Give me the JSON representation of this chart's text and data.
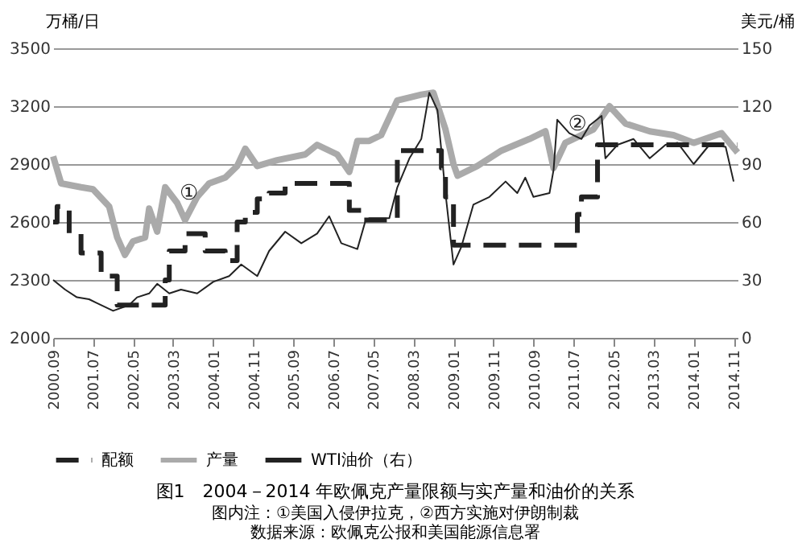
{
  "chart_data": {
    "type": "line",
    "title": "图1　2004－2014 年欧佩克产量限额与实产量和油价的关系",
    "ylabel": "万桶/日",
    "y2label": "美元/桶",
    "annotations": [
      "图内注：①美国入侵伊拉克，②西方实施对伊朗制裁",
      "数据来源：欧佩克公报和美国能源信息署",
      {
        "text": "①",
        "x": "2003-07",
        "y": 2750
      },
      {
        "text": "②",
        "x": "2011-08",
        "y": 3110
      }
    ],
    "xlim": [
      "2000-09",
      "2014-12"
    ],
    "xticks": [
      {
        "value": "2000-09",
        "label": "2000.09"
      },
      {
        "value": "2001-07",
        "label": "2001.07"
      },
      {
        "value": "2002-05",
        "label": "2002.05"
      },
      {
        "value": "2003-03",
        "label": "2003.03"
      },
      {
        "value": "2004-01",
        "label": "2004.01"
      },
      {
        "value": "2004-11",
        "label": "2004.11"
      },
      {
        "value": "2005-09",
        "label": "2005.09"
      },
      {
        "value": "2006-07",
        "label": "2006.07"
      },
      {
        "value": "2007-05",
        "label": "2007.05"
      },
      {
        "value": "2008-03",
        "label": "2008.03"
      },
      {
        "value": "2009-01",
        "label": "2009.01"
      },
      {
        "value": "2009-11",
        "label": "2009.11"
      },
      {
        "value": "2010-09",
        "label": "2010.09"
      },
      {
        "value": "2011-07",
        "label": "2011.07"
      },
      {
        "value": "2012-05",
        "label": "2012.05"
      },
      {
        "value": "2013-03",
        "label": "2013.03"
      },
      {
        "value": "2014-01",
        "label": "2014.01"
      },
      {
        "value": "2014-11",
        "label": "2014.11"
      }
    ],
    "ylim": [
      2000,
      3500
    ],
    "yticks": [
      2000,
      2300,
      2600,
      2900,
      3200,
      3500
    ],
    "y2lim": [
      0,
      150
    ],
    "y2ticks": [
      0,
      30,
      60,
      90,
      120,
      150
    ],
    "grid": "y",
    "legend": "bottom",
    "series": [
      {
        "name": "配额",
        "type": "step",
        "line_style": "dashed",
        "color": "#222222",
        "x": [
          "2000-09",
          "2000-10",
          "2001-01",
          "2001-04",
          "2001-09",
          "2002-01",
          "2003-01",
          "2003-02",
          "2003-06",
          "2003-11",
          "2004-04",
          "2004-07",
          "2004-09",
          "2004-12",
          "2005-03",
          "2005-07",
          "2006-11",
          "2007-02",
          "2007-11",
          "2008-10",
          "2008-11",
          "2009-01",
          "2011-08",
          "2011-09",
          "2012-01",
          "2014-12"
        ],
        "values": [
          2600,
          2680,
          2540,
          2440,
          2320,
          2170,
          2300,
          2450,
          2540,
          2450,
          2400,
          2600,
          2650,
          2720,
          2750,
          2800,
          2660,
          2610,
          2970,
          2880,
          2730,
          2480,
          2640,
          2730,
          3000,
          3000
        ]
      },
      {
        "name": "产量",
        "type": "line",
        "line_style": "solid",
        "color": "#aaaaaa",
        "x": [
          "2000-09",
          "2000-11",
          "2001-04",
          "2001-07",
          "2001-11",
          "2002-01",
          "2002-03",
          "2002-05",
          "2002-08",
          "2002-09",
          "2002-11",
          "2003-01",
          "2003-04",
          "2003-06",
          "2003-09",
          "2003-12",
          "2004-04",
          "2004-07",
          "2004-09",
          "2004-12",
          "2005-05",
          "2005-12",
          "2006-03",
          "2006-08",
          "2006-11",
          "2007-01",
          "2007-04",
          "2007-07",
          "2007-11",
          "2008-05",
          "2008-08",
          "2008-11",
          "2009-01",
          "2009-02",
          "2009-07",
          "2010-01",
          "2010-08",
          "2010-12",
          "2011-02",
          "2011-05",
          "2011-12",
          "2012-04",
          "2012-08",
          "2013-02",
          "2013-08",
          "2014-01",
          "2014-08",
          "2014-12"
        ],
        "values": [
          2940,
          2800,
          2780,
          2770,
          2680,
          2520,
          2430,
          2500,
          2520,
          2670,
          2550,
          2780,
          2700,
          2610,
          2730,
          2800,
          2830,
          2890,
          2980,
          2890,
          2920,
          2950,
          3000,
          2950,
          2860,
          3020,
          3020,
          3050,
          3230,
          3260,
          3270,
          3080,
          2900,
          2840,
          2890,
          2970,
          3030,
          3070,
          2880,
          3010,
          3080,
          3200,
          3110,
          3070,
          3050,
          3010,
          3060,
          2960
        ]
      },
      {
        "name": "WTI油价（右）",
        "type": "line",
        "line_style": "solid",
        "axis": "y2",
        "color": "#222222",
        "x": [
          "2000-09",
          "2000-12",
          "2001-03",
          "2001-06",
          "2001-08",
          "2001-12",
          "2002-04",
          "2002-06",
          "2002-09",
          "2002-11",
          "2003-02",
          "2003-05",
          "2003-09",
          "2004-01",
          "2004-05",
          "2004-08",
          "2004-12",
          "2005-03",
          "2005-07",
          "2005-11",
          "2006-03",
          "2006-06",
          "2006-09",
          "2007-01",
          "2007-03",
          "2007-04",
          "2007-06",
          "2007-09",
          "2007-11",
          "2008-02",
          "2008-05",
          "2008-07",
          "2008-09",
          "2008-11",
          "2009-01",
          "2009-03",
          "2009-06",
          "2009-10",
          "2010-02",
          "2010-05",
          "2010-07",
          "2010-09",
          "2011-01",
          "2011-02",
          "2011-03",
          "2011-06",
          "2011-09",
          "2011-11",
          "2012-02",
          "2012-03",
          "2012-06",
          "2012-10",
          "2013-02",
          "2013-06",
          "2013-09",
          "2014-01",
          "2014-05",
          "2014-09",
          "2014-11"
        ],
        "values": [
          30,
          25,
          21,
          20,
          18,
          14,
          17,
          21,
          23,
          28,
          23,
          25,
          23,
          29,
          32,
          38,
          32,
          45,
          55,
          49,
          54,
          63,
          49,
          46,
          60,
          62,
          62,
          62,
          78,
          93,
          103,
          127,
          118,
          75,
          38,
          47,
          69,
          73,
          81,
          75,
          83,
          73,
          75,
          87,
          113,
          106,
          103,
          110,
          115,
          93,
          100,
          103,
          93,
          100,
          101,
          90,
          100,
          99,
          81
        ]
      }
    ]
  }
}
